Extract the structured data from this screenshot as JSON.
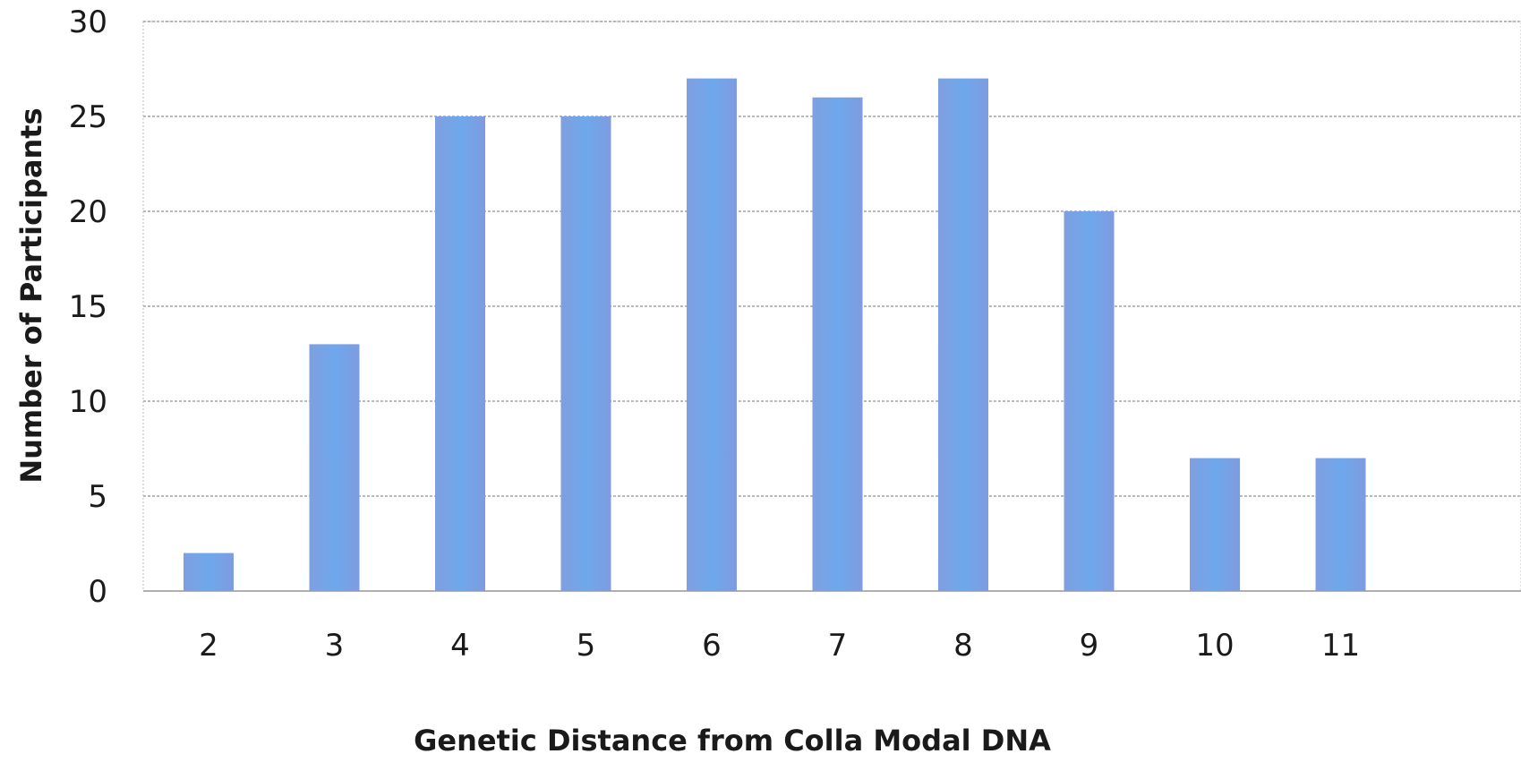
{
  "chart_data": {
    "type": "bar",
    "title": "",
    "xlabel": "Genetic Distance from Colla Modal DNA",
    "ylabel": "Number of Participants",
    "categories": [
      "2",
      "3",
      "4",
      "5",
      "6",
      "7",
      "8",
      "9",
      "10",
      "11"
    ],
    "values": [
      2,
      13,
      25,
      25,
      27,
      26,
      27,
      20,
      7,
      7
    ],
    "ylim": [
      0,
      30
    ],
    "yticks": [
      "0",
      "5",
      "10",
      "15",
      "20",
      "25",
      "30"
    ],
    "grid": true,
    "legend": "none",
    "bar_color": "#6f9ee6"
  }
}
